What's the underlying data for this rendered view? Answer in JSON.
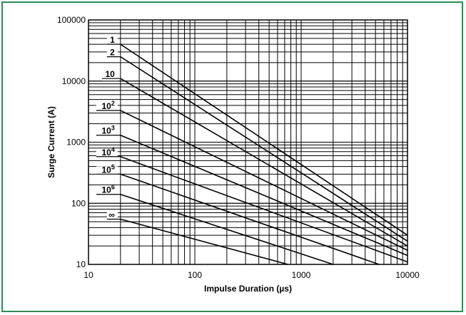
{
  "chart_data": {
    "type": "line",
    "title": "",
    "xlabel": "Impulse Duration (µs)",
    "ylabel": "Surge Current (A)",
    "x_scale": "log",
    "y_scale": "log",
    "xlim": [
      10,
      10000
    ],
    "ylim": [
      10,
      100000
    ],
    "x_tick_labels": [
      "10",
      "100",
      "1000",
      "10000"
    ],
    "y_tick_labels": [
      "10",
      "100",
      "1000",
      "10000",
      "100000"
    ],
    "grid": true,
    "colors": {
      "frame": "#2e8b57",
      "lines": "#000000"
    },
    "series": [
      {
        "name": "1",
        "label_base": "1",
        "label_sup": "",
        "x": [
          20,
          10000
        ],
        "y": [
          40000,
          30
        ]
      },
      {
        "name": "2",
        "label_base": "2",
        "label_sup": "",
        "x": [
          20,
          10000
        ],
        "y": [
          25000,
          24
        ]
      },
      {
        "name": "10",
        "label_base": "10",
        "label_sup": "",
        "x": [
          20,
          10000
        ],
        "y": [
          11000,
          20
        ]
      },
      {
        "name": "10²",
        "label_base": "10",
        "label_sup": "2",
        "x": [
          20,
          10000
        ],
        "y": [
          3300,
          17
        ]
      },
      {
        "name": "10³",
        "label_base": "10",
        "label_sup": "3",
        "x": [
          20,
          10000
        ],
        "y": [
          1300,
          14
        ]
      },
      {
        "name": "10⁴",
        "label_base": "10",
        "label_sup": "4",
        "x": [
          20,
          10000
        ],
        "y": [
          580,
          11
        ]
      },
      {
        "name": "10⁵",
        "label_base": "10",
        "label_sup": "5",
        "x": [
          20,
          5400
        ],
        "y": [
          300,
          10
        ]
      },
      {
        "name": "10⁶",
        "label_base": "10",
        "label_sup": "6",
        "x": [
          20,
          2000
        ],
        "y": [
          140,
          10
        ]
      },
      {
        "name": "∞",
        "label_base": "∞",
        "label_sup": "",
        "x": [
          20,
          750
        ],
        "y": [
          55,
          10
        ]
      }
    ]
  }
}
